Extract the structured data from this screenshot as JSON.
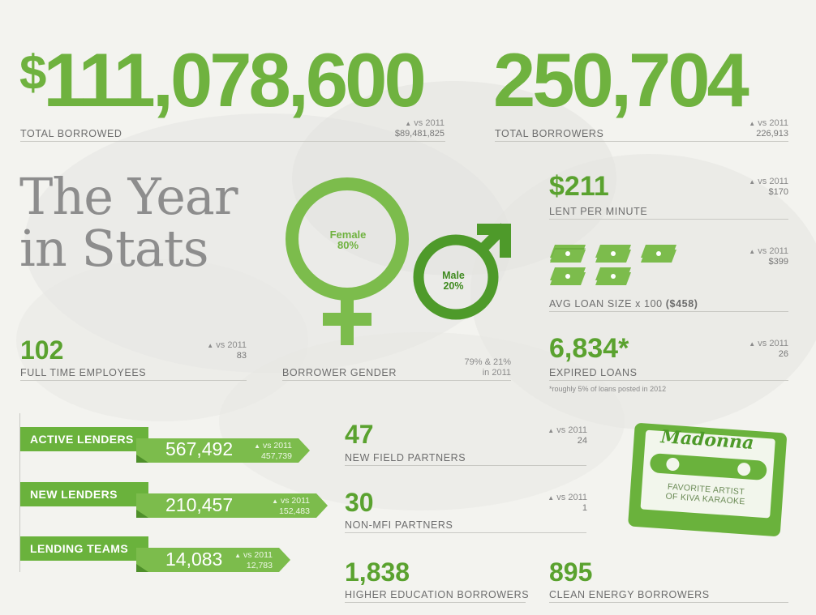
{
  "colors": {
    "accent": "#6fb23f",
    "dark_accent": "#3f8a1f",
    "text": "#6d6d6d",
    "background": "#f3f3ef"
  },
  "chart_data": {
    "type": "table",
    "title": "The Year in Stats",
    "total_borrowed": {
      "currency": "$",
      "value": "111,078,600",
      "label": "TOTAL BORROWED",
      "vs": "vs 2011",
      "prev": "$89,481,825"
    },
    "total_borrowers": {
      "value": "250,704",
      "label": "TOTAL BORROWERS",
      "vs": "vs 2011",
      "prev": "226,913"
    },
    "title_line1": "The Year",
    "title_line2": "in Stats",
    "gender": {
      "female_label": "Female",
      "female_pct": "80%",
      "male_label": "Male",
      "male_pct": "20%",
      "label": "BORROWER GENDER",
      "prev_line1": "79% & 21%",
      "prev_line2": "in 2011"
    },
    "lent_per_minute": {
      "value": "$211",
      "label": "LENT PER MINUTE",
      "vs": "vs 2011",
      "prev": "$170"
    },
    "avg_loan": {
      "label": "AVG LOAN SIZE x 100",
      "value": "($458)",
      "vs": "vs 2011",
      "prev": "$399",
      "stacks": 5
    },
    "employees": {
      "value": "102",
      "label": "FULL TIME EMPLOYEES",
      "vs": "vs 2011",
      "prev": "83"
    },
    "expired": {
      "value": "6,834*",
      "label": "EXPIRED LOANS",
      "vs": "vs 2011",
      "prev": "26",
      "note": "*roughly 5% of loans posted in 2012"
    },
    "lenders": [
      {
        "label": "ACTIVE LENDERS",
        "value": "567,492",
        "vs": "vs 2011",
        "prev": "457,739"
      },
      {
        "label": "NEW LENDERS",
        "value": "210,457",
        "vs": "vs 2011",
        "prev": "152,483"
      },
      {
        "label": "LENDING TEAMS",
        "value": "14,083",
        "vs": "vs 2011",
        "prev": "12,783"
      }
    ],
    "field_partners": {
      "value": "47",
      "label": "NEW FIELD PARTNERS",
      "vs": "vs 2011",
      "prev": "24"
    },
    "non_mfi": {
      "value": "30",
      "label": "NON-MFI PARTNERS",
      "vs": "vs 2011",
      "prev": "1"
    },
    "higher_ed": {
      "value": "1,838",
      "label": "HIGHER EDUCATION BORROWERS"
    },
    "clean_energy": {
      "value": "895",
      "label": "CLEAN ENERGY BORROWERS"
    },
    "karaoke": {
      "artist": "Madonna",
      "line1": "FAVORITE ARTIST",
      "line2": "OF KIVA KARAOKE"
    }
  }
}
